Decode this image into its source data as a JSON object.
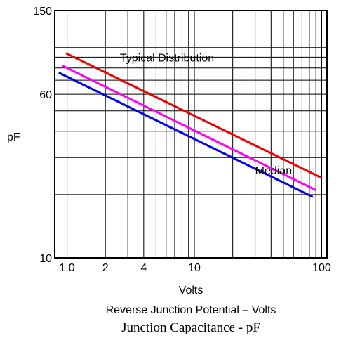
{
  "chart_data": {
    "type": "line",
    "xscale": "log",
    "yscale": "log",
    "xlim": [
      0.8,
      110
    ],
    "ylim": [
      10,
      150
    ],
    "grid": true,
    "x_tick_labels": [
      {
        "value": 1.0,
        "label": "1.0"
      },
      {
        "value": 2,
        "label": "2"
      },
      {
        "value": 4,
        "label": "4"
      },
      {
        "value": 10,
        "label": "10"
      },
      {
        "value": 100,
        "label": "100"
      }
    ],
    "y_tick_labels": [
      {
        "value": 10,
        "label": "10"
      },
      {
        "value": 60,
        "label": "60"
      },
      {
        "value": 150,
        "label": "150"
      }
    ],
    "ylabel": "pF",
    "xlabel": "Volts",
    "xlabel2": "Reverse Junction Potential – Volts",
    "caption": "Junction Capacitance - pF",
    "annotations": [
      {
        "text": "Typical Distribution",
        "x": 2.6,
        "y": 86
      },
      {
        "text": "Median",
        "x": 30,
        "y": 25
      }
    ],
    "series": [
      {
        "color": "#ee0000",
        "x": [
          0.98,
          100
        ],
        "y": [
          94,
          24
        ]
      },
      {
        "color": "#ff00ff",
        "x": [
          0.92,
          90
        ],
        "y": [
          82,
          21
        ]
      },
      {
        "color": "#0000ee",
        "x": [
          0.86,
          85
        ],
        "y": [
          76,
          19.5
        ]
      }
    ]
  }
}
